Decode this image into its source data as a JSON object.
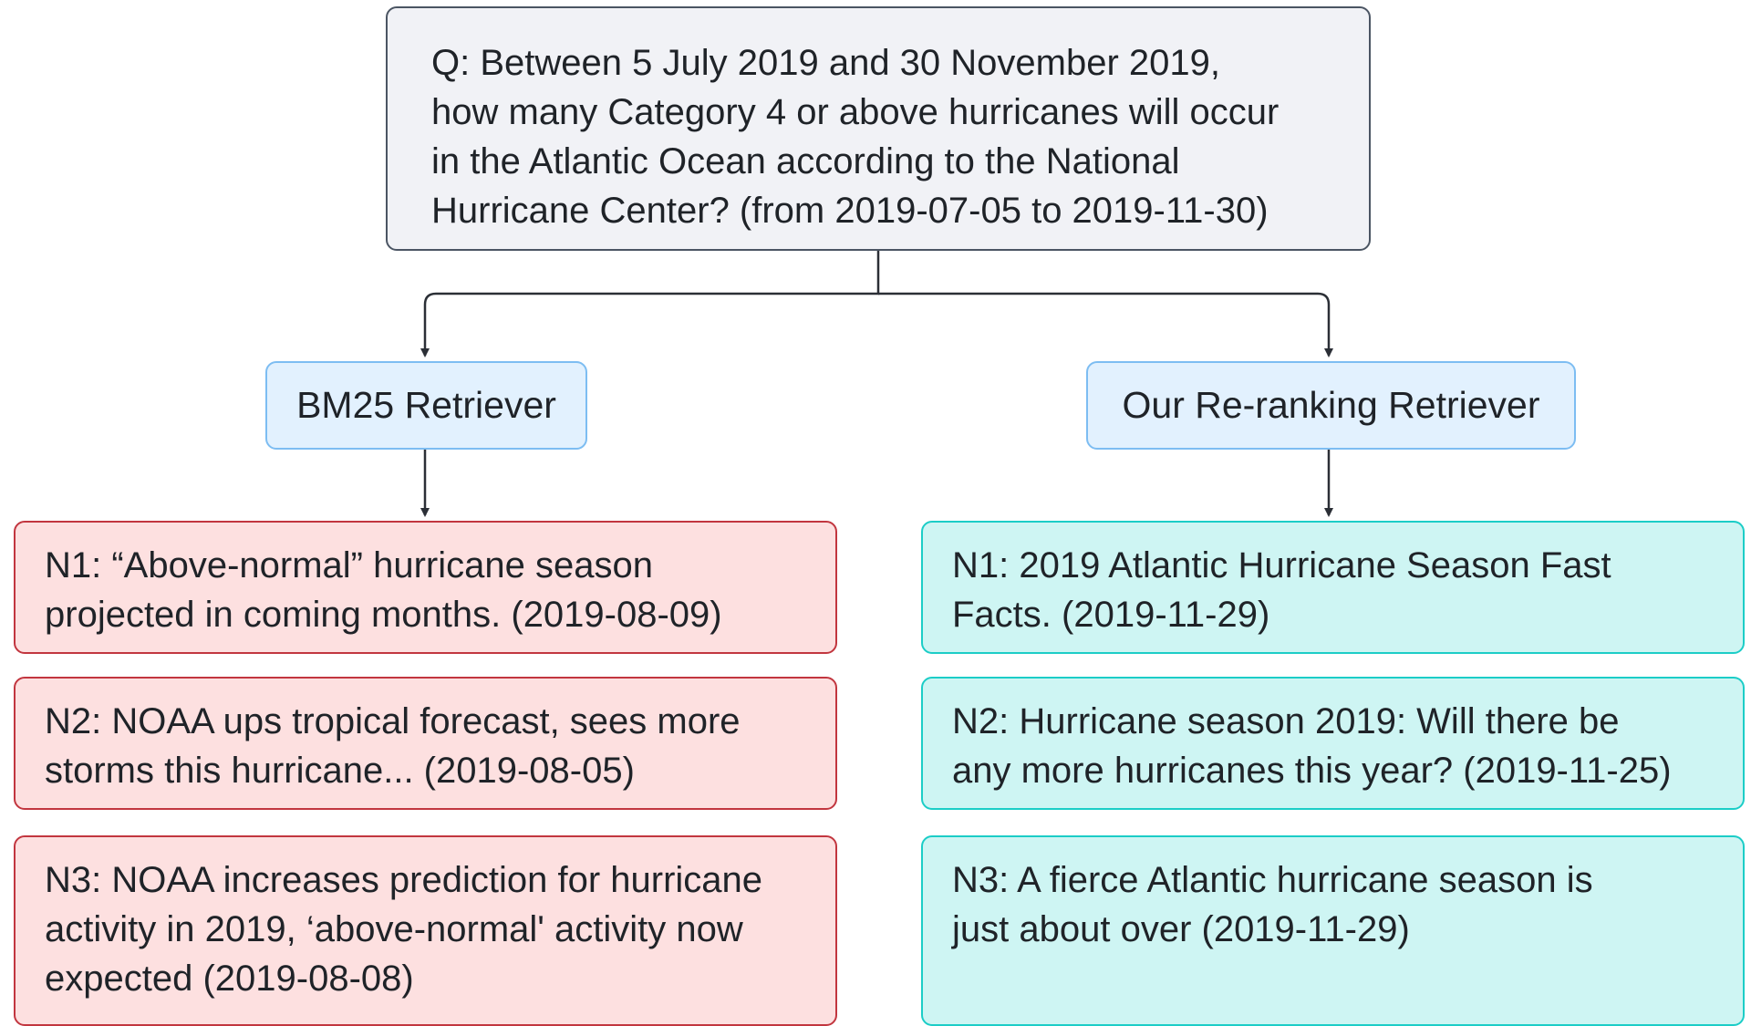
{
  "question": {
    "lines": [
      "Q: Between 5 July 2019 and 30 November 2019,",
      "how many Category 4 or above hurricanes will occur",
      "in the Atlantic Ocean according to the National",
      "Hurricane Center? (from 2019-07-05 to 2019-11-30)"
    ]
  },
  "retrievers": {
    "bm25": {
      "label": "BM25 Retriever",
      "news": [
        {
          "lines": [
            "N1: “Above-normal” hurricane season",
            "projected in coming months. (2019-08-09)"
          ]
        },
        {
          "lines": [
            "N2: NOAA ups tropical forecast, sees more",
            "storms this hurricane... (2019-08-05)"
          ]
        },
        {
          "lines": [
            "N3: NOAA increases prediction for hurricane",
            "activity in 2019, ‘above-normal' activity now",
            "expected (2019-08-08)"
          ]
        }
      ]
    },
    "ours": {
      "label": "Our Re-ranking Retriever",
      "news": [
        {
          "lines": [
            "N1: 2019 Atlantic Hurricane Season Fast",
            "Facts. (2019-11-29)"
          ]
        },
        {
          "lines": [
            "N2: Hurricane season 2019: Will there be",
            "any more hurricanes this year? (2019-11-25)"
          ]
        },
        {
          "lines": [
            "N3: A fierce Atlantic hurricane season is",
            "just about over (2019-11-29)"
          ]
        }
      ]
    }
  },
  "colors": {
    "question_bg": "#f1f2f6",
    "retriever_bg": "#e2f1fe",
    "bm25_bg": "#fde0e0",
    "bm25_border": "#c2363f",
    "ours_bg": "#cef5f3",
    "ours_border": "#1ccdc7",
    "connector": "#2b2f36"
  }
}
